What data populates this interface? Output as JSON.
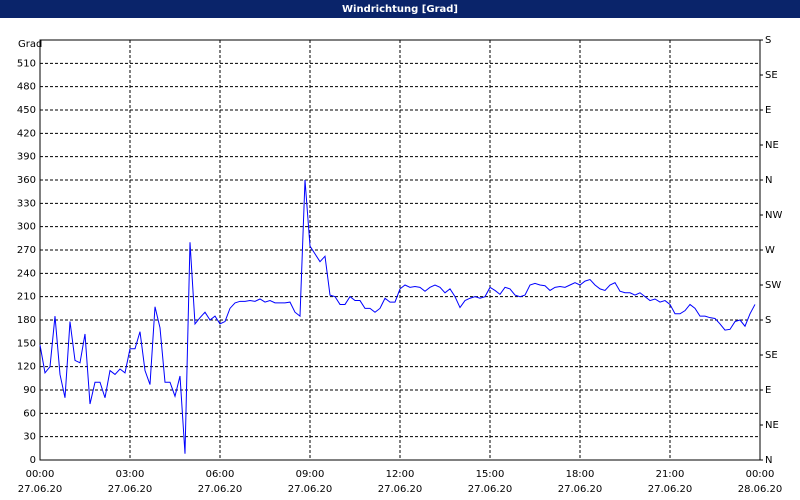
{
  "chart_data": {
    "type": "line",
    "title": "Windrichtung [Grad]",
    "ylabel": "Grad",
    "color": "#0000ff",
    "grid": true,
    "x": [
      0,
      10,
      20,
      30,
      40,
      50,
      60,
      70,
      80,
      90,
      100,
      110,
      120,
      130,
      140,
      150,
      160,
      170,
      180,
      190,
      200,
      210,
      220,
      230,
      240,
      250,
      260,
      270,
      280,
      290,
      300,
      310,
      320,
      330,
      340,
      350,
      360,
      370,
      380,
      390,
      400,
      410,
      420,
      430,
      440,
      450,
      460,
      470,
      480,
      490,
      500,
      510,
      520,
      530,
      540,
      550,
      560,
      570,
      580,
      590,
      600,
      610,
      620,
      630,
      640,
      650,
      660,
      670,
      680,
      690,
      700,
      710,
      720,
      730,
      740,
      750,
      760,
      770,
      780,
      790,
      800,
      810,
      820,
      830,
      840,
      850,
      860,
      870,
      880,
      890,
      900,
      910,
      920,
      930,
      940,
      950,
      960,
      970,
      980,
      990,
      1000,
      1010,
      1020,
      1030,
      1040,
      1050,
      1060,
      1070,
      1080,
      1090,
      1100,
      1110,
      1120,
      1130,
      1140,
      1150,
      1160,
      1170,
      1180,
      1190,
      1200,
      1210,
      1220,
      1230,
      1240,
      1250,
      1260,
      1270,
      1280,
      1290,
      1300,
      1310,
      1320,
      1330,
      1340,
      1350,
      1360,
      1370,
      1380,
      1390,
      1400,
      1410,
      1420,
      1430
    ],
    "values": [
      148,
      112,
      120,
      185,
      110,
      80,
      178,
      128,
      125,
      162,
      72,
      100,
      100,
      80,
      115,
      110,
      117,
      112,
      143,
      143,
      165,
      115,
      97,
      197,
      170,
      100,
      100,
      82,
      108,
      8,
      280,
      175,
      183,
      190,
      180,
      185,
      175,
      178,
      195,
      202,
      204,
      204,
      205,
      204,
      207,
      203,
      205,
      202,
      202,
      202,
      203,
      190,
      185,
      360,
      275,
      265,
      255,
      262,
      212,
      210,
      200,
      200,
      210,
      205,
      205,
      195,
      195,
      190,
      195,
      208,
      203,
      203,
      220,
      225,
      222,
      223,
      222,
      217,
      222,
      225,
      222,
      215,
      220,
      210,
      196,
      205,
      208,
      210,
      208,
      210,
      222,
      218,
      213,
      222,
      220,
      212,
      210,
      212,
      225,
      227,
      225,
      224,
      218,
      222,
      223,
      222,
      225,
      228,
      225,
      230,
      232,
      225,
      220,
      218,
      225,
      228,
      217,
      215,
      215,
      212,
      215,
      210,
      205,
      207,
      203,
      205,
      200,
      188,
      188,
      192,
      200,
      195,
      185,
      185,
      183,
      182,
      175,
      167,
      168,
      178,
      180,
      172,
      188,
      200
    ],
    "xlim": [
      0,
      1440
    ],
    "xticks": [
      {
        "value": 0,
        "label": "00:00"
      },
      {
        "value": 180,
        "label": "03:00"
      },
      {
        "value": 360,
        "label": "06:00"
      },
      {
        "value": 540,
        "label": "09:00"
      },
      {
        "value": 720,
        "label": "12:00"
      },
      {
        "value": 900,
        "label": "15:00"
      },
      {
        "value": 1080,
        "label": "18:00"
      },
      {
        "value": 1260,
        "label": "21:00"
      },
      {
        "value": 1440,
        "label": "00:00"
      }
    ],
    "xtick_dates": [
      "27.06.20",
      "27.06.20",
      "27.06.20",
      "27.06.20",
      "27.06.20",
      "27.06.20",
      "27.06.20",
      "27.06.20",
      "28.06.20"
    ],
    "ylim": [
      0,
      540
    ],
    "yticks": [
      0,
      30,
      60,
      90,
      120,
      150,
      180,
      210,
      240,
      270,
      300,
      330,
      360,
      390,
      420,
      450,
      480,
      510
    ],
    "y2lim": [
      0,
      540
    ],
    "y2ticks": [
      {
        "value": 0,
        "label": "N"
      },
      {
        "value": 45,
        "label": "NE"
      },
      {
        "value": 90,
        "label": "E"
      },
      {
        "value": 135,
        "label": "SE"
      },
      {
        "value": 180,
        "label": "S"
      },
      {
        "value": 225,
        "label": "SW"
      },
      {
        "value": 270,
        "label": "W"
      },
      {
        "value": 315,
        "label": "NW"
      },
      {
        "value": 360,
        "label": "N"
      },
      {
        "value": 405,
        "label": "NE"
      },
      {
        "value": 450,
        "label": "E"
      },
      {
        "value": 495,
        "label": "SE"
      },
      {
        "value": 540,
        "label": "S"
      }
    ]
  }
}
